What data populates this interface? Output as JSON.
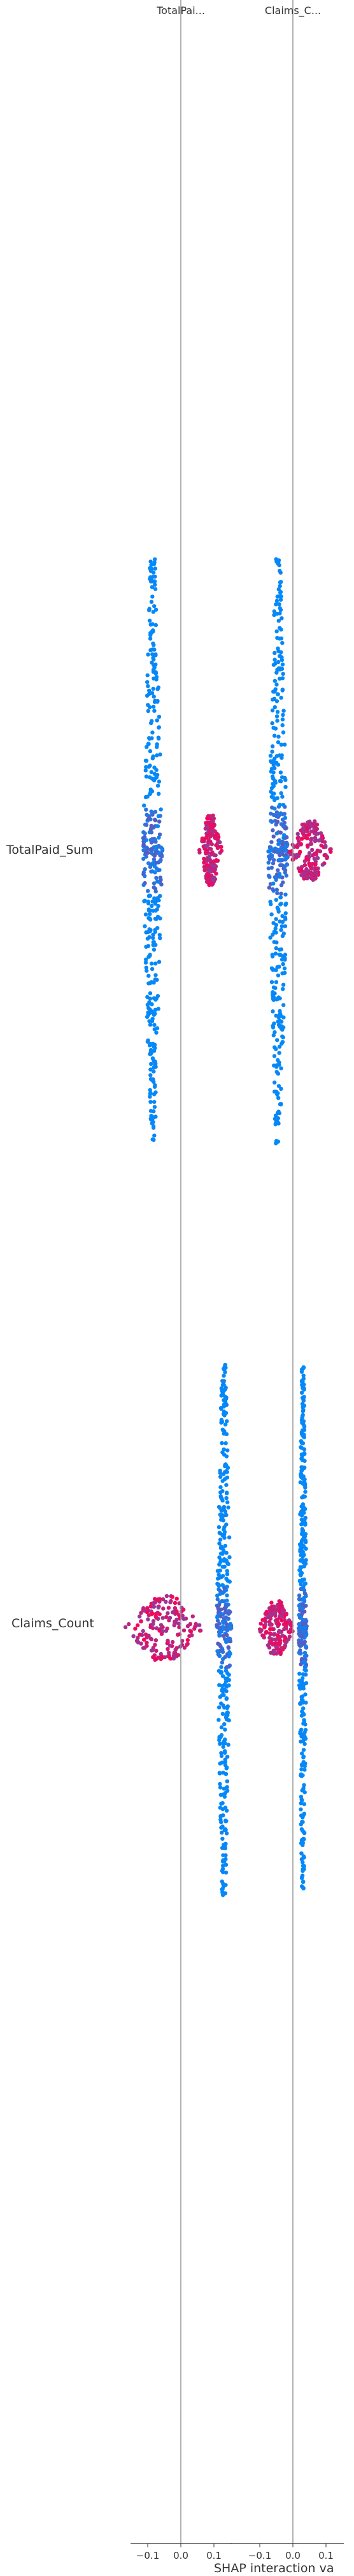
{
  "chart_data": {
    "type": "scatter",
    "subtype": "shap-interaction-summary-matrix",
    "panel_titles": [
      "TotalPai...",
      "Claims_C..."
    ],
    "row_labels": [
      "TotalPaid_Sum",
      "Claims_Count"
    ],
    "xlabel": "SHAP interaction va",
    "xlim": [
      -0.14,
      0.14
    ],
    "xticks": [
      -0.1,
      0.0,
      0.1
    ],
    "xtick_labels": [
      "−0.1",
      "0.0",
      "0.1"
    ],
    "colors": {
      "low": "#008bfb",
      "high": "#ff0052",
      "axis": "#333333",
      "zero_line": "#999999"
    },
    "panels": [
      {
        "row": "TotalPaid_Sum",
        "col": "TotalPai...",
        "clusters": [
          {
            "center_x": -0.085,
            "x_range": [
              -0.13,
              -0.07
            ],
            "y_span": [
              -1.0,
              1.0
            ],
            "feature_value": "low"
          },
          {
            "center_x": 0.09,
            "x_range": [
              0.06,
              0.13
            ],
            "y_span": [
              -0.12,
              0.12
            ],
            "feature_value": "high"
          }
        ]
      },
      {
        "row": "TotalPaid_Sum",
        "col": "Claims_C...",
        "clusters": [
          {
            "center_x": -0.045,
            "x_range": [
              -0.06,
              0.0
            ],
            "y_span": [
              -1.0,
              1.0
            ],
            "feature_value": "low"
          },
          {
            "center_x": 0.05,
            "x_range": [
              0.0,
              0.14
            ],
            "y_span": [
              -0.1,
              0.1
            ],
            "feature_value": "high"
          }
        ]
      },
      {
        "row": "Claims_Count",
        "col": "TotalPai...",
        "clusters": [
          {
            "center_x": 0.13,
            "x_range": [
              0.1,
              0.145
            ],
            "y_span": [
              -1.0,
              1.0
            ],
            "feature_value": "low"
          },
          {
            "center_x": -0.05,
            "x_range": [
              -0.14,
              0.1
            ],
            "y_span": [
              -0.12,
              0.12
            ],
            "feature_value": "high"
          }
        ]
      },
      {
        "row": "Claims_Count",
        "col": "Claims_C...",
        "clusters": [
          {
            "center_x": 0.03,
            "x_range": [
              0.02,
              0.045
            ],
            "y_span": [
              -1.0,
              1.0
            ],
            "feature_value": "low"
          },
          {
            "center_x": -0.05,
            "x_range": [
              -0.11,
              0.0
            ],
            "y_span": [
              -0.1,
              0.1
            ],
            "feature_value": "high"
          }
        ]
      }
    ]
  }
}
